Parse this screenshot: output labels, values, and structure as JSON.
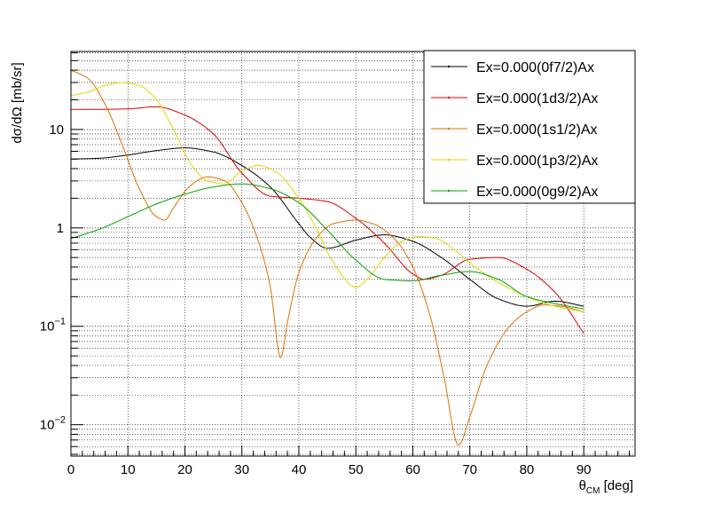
{
  "chart_data": {
    "type": "line",
    "title": "",
    "xlabel_main": "θ",
    "xlabel_sub": "CM",
    "xlabel_unit": " [deg]",
    "ylabel": "dσ/dΩ [mb/sr]",
    "xlim": [
      0,
      99
    ],
    "ylim": [
      0.0048,
      62
    ],
    "yscale": "log",
    "grid": true,
    "legend_position": "top-right",
    "x_ticks": [
      0,
      10,
      20,
      30,
      40,
      50,
      60,
      70,
      80,
      90
    ],
    "y_ticks": [
      {
        "value": 0.01,
        "base": "10",
        "exp": "−2"
      },
      {
        "value": 0.1,
        "base": "10",
        "exp": "−1"
      },
      {
        "value": 1,
        "base": "1",
        "exp": ""
      },
      {
        "value": 10,
        "base": "10",
        "exp": ""
      }
    ],
    "series": [
      {
        "name": "Ex=0.000(0f7/2)Ax",
        "color": "#000000",
        "x": [
          0,
          5,
          10,
          15,
          20,
          25,
          30,
          35,
          40,
          42,
          45,
          50,
          55,
          60,
          65,
          70,
          75,
          80,
          85,
          90
        ],
        "y": [
          5.0,
          5.1,
          5.5,
          6.1,
          6.5,
          5.9,
          4.3,
          2.6,
          1.1,
          0.8,
          0.62,
          0.75,
          0.85,
          0.73,
          0.5,
          0.3,
          0.19,
          0.16,
          0.18,
          0.16
        ]
      },
      {
        "name": "Ex=0.000(1d3/2)Ax",
        "color": "#e00000",
        "x": [
          0,
          5,
          10,
          15,
          20,
          25,
          30,
          35,
          40,
          45,
          50,
          55,
          60,
          62,
          65,
          70,
          75,
          80,
          85,
          90
        ],
        "y": [
          16.0,
          16.0,
          16.2,
          17.0,
          14.0,
          9.0,
          3.6,
          2.1,
          2.0,
          1.85,
          1.25,
          0.7,
          0.34,
          0.3,
          0.33,
          0.48,
          0.5,
          0.38,
          0.22,
          0.085
        ]
      },
      {
        "name": "Ex=0.000(1s1/2)Ax",
        "color": "#e07000",
        "x": [
          0,
          3,
          6,
          9,
          12,
          15,
          16.5,
          18,
          21,
          24,
          27,
          30,
          33,
          35,
          36.8,
          38,
          40,
          43,
          46,
          50,
          53,
          57,
          60,
          63,
          65.5,
          68,
          70,
          73,
          77,
          80,
          83,
          86,
          90
        ],
        "y": [
          40,
          33,
          18,
          7,
          2.5,
          1.3,
          1.2,
          1.6,
          2.7,
          3.3,
          3.0,
          1.8,
          0.7,
          0.25,
          0.048,
          0.11,
          0.35,
          0.78,
          1.1,
          1.2,
          1.1,
          0.75,
          0.4,
          0.13,
          0.03,
          0.0062,
          0.012,
          0.04,
          0.1,
          0.14,
          0.165,
          0.16,
          0.14
        ]
      },
      {
        "name": "Ex=0.000(1p3/2)Ax",
        "color": "#e0d800",
        "x": [
          0,
          3,
          6,
          9,
          12,
          15,
          18,
          21,
          24,
          27,
          30,
          33,
          36,
          40,
          43,
          46,
          50,
          52,
          55,
          58,
          61,
          64,
          67,
          70,
          75,
          80,
          85,
          90
        ],
        "y": [
          22,
          24,
          28,
          30,
          28,
          20,
          10,
          4.5,
          3.0,
          2.8,
          3.8,
          4.3,
          3.7,
          2.0,
          1.0,
          0.45,
          0.25,
          0.3,
          0.5,
          0.72,
          0.82,
          0.78,
          0.62,
          0.44,
          0.28,
          0.2,
          0.16,
          0.14
        ]
      },
      {
        "name": "Ex=0.000(0g9/2)Ax",
        "color": "#00a000",
        "x": [
          0,
          5,
          10,
          15,
          20,
          25,
          30,
          35,
          40,
          45,
          50,
          55,
          60,
          65,
          70,
          75,
          80,
          85,
          90
        ],
        "y": [
          0.78,
          0.97,
          1.3,
          1.75,
          2.2,
          2.6,
          2.8,
          2.5,
          1.8,
          0.95,
          0.47,
          0.3,
          0.29,
          0.33,
          0.36,
          0.3,
          0.2,
          0.17,
          0.15
        ]
      }
    ]
  }
}
